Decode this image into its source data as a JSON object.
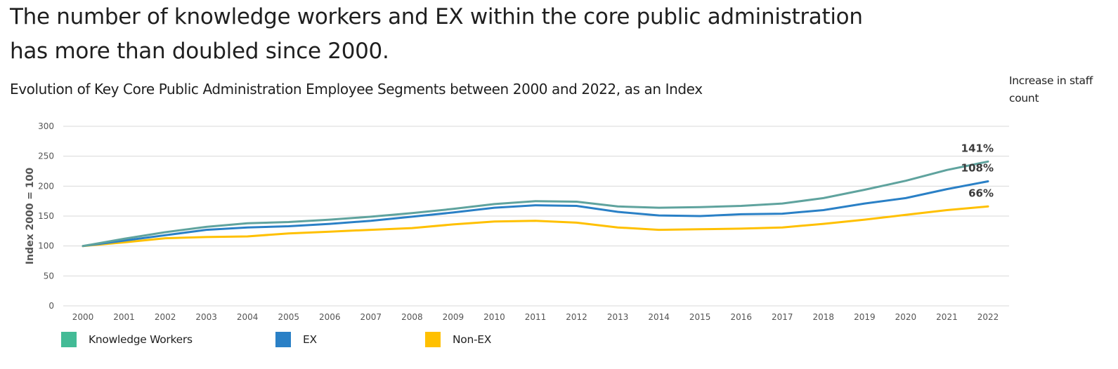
{
  "headline": "The number of knowledge workers and EX within the core public administration has more than doubled since 2000.",
  "side_note": "Increase in staff count",
  "chart_data": {
    "type": "line",
    "title": "Evolution of Key Core Public Administration Employee Segments between 2000 and 2022, as an Index",
    "xlabel": "",
    "ylabel": "Index 2000 = 100",
    "x": [
      "2000",
      "2001",
      "2002",
      "2003",
      "2004",
      "2005",
      "2006",
      "2007",
      "2008",
      "2009",
      "2010",
      "2011",
      "2012",
      "2013",
      "2014",
      "2015",
      "2016",
      "2017",
      "2018",
      "2019",
      "2020",
      "2021",
      "2022"
    ],
    "ylim": [
      0,
      300
    ],
    "yticks": [
      0,
      50,
      100,
      150,
      200,
      250,
      300
    ],
    "grid": true,
    "legend_position": "bottom",
    "series": [
      {
        "name": "Knowledge Workers",
        "color": "#5fa39e",
        "legend_color": "#43bb96",
        "end_label": "141%",
        "values": [
          100,
          112,
          123,
          132,
          138,
          140,
          144,
          149,
          155,
          162,
          170,
          175,
          174,
          166,
          164,
          165,
          167,
          171,
          180,
          194,
          209,
          227,
          241
        ]
      },
      {
        "name": "EX",
        "color": "#2a80c6",
        "legend_color": "#2a80c6",
        "end_label": "108%",
        "values": [
          100,
          109,
          118,
          127,
          131,
          133,
          137,
          142,
          149,
          156,
          164,
          168,
          167,
          157,
          151,
          150,
          153,
          154,
          160,
          171,
          180,
          195,
          208
        ]
      },
      {
        "name": "Non-EX",
        "color": "#ffc000",
        "legend_color": "#ffc000",
        "end_label": "66%",
        "values": [
          100,
          106,
          113,
          115,
          116,
          121,
          124,
          127,
          130,
          136,
          141,
          142,
          139,
          131,
          127,
          128,
          129,
          131,
          137,
          144,
          152,
          160,
          166
        ]
      }
    ]
  }
}
